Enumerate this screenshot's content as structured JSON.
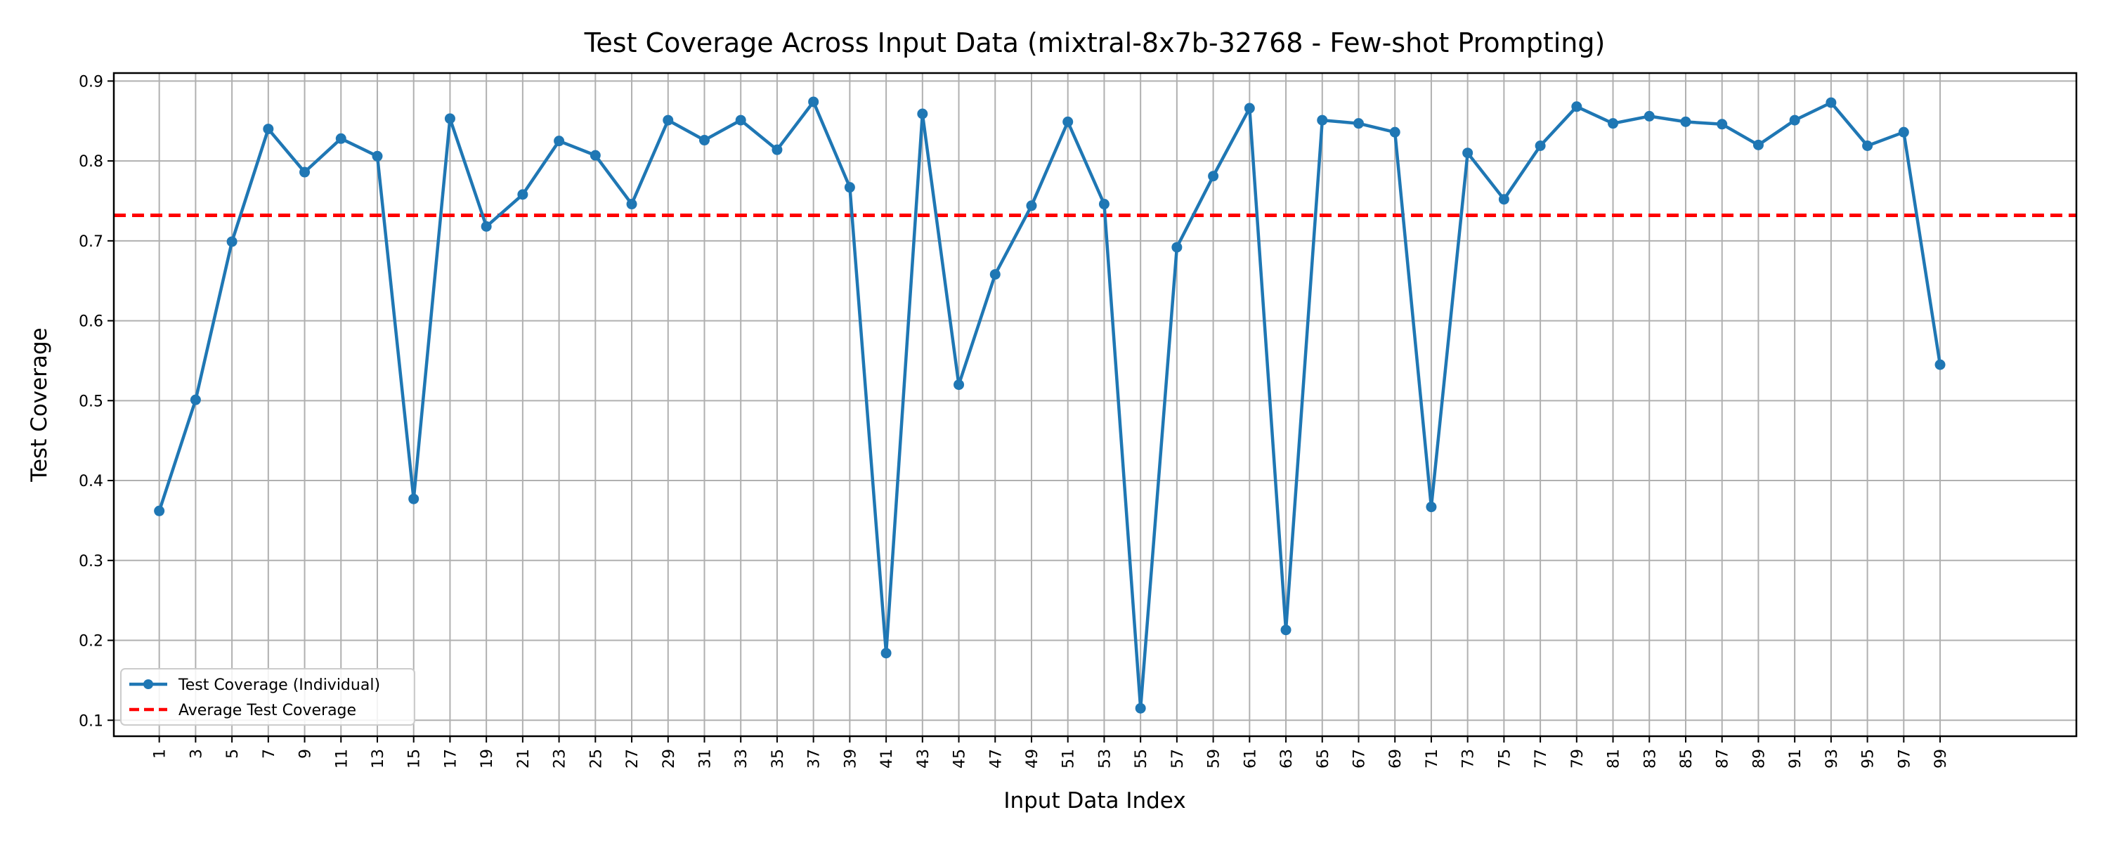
{
  "chart_data": {
    "type": "line",
    "title": "Test Coverage Across Input Data (mixtral-8x7b-32768 - Few-shot Prompting)",
    "xlabel": "Input Data Index",
    "ylabel": "Test Coverage",
    "xlim": [
      -1.5,
      106.5
    ],
    "ylim": [
      0.08,
      0.91
    ],
    "grid": true,
    "legend_position": "lower-left",
    "x_ticks": [
      1,
      3,
      5,
      7,
      9,
      11,
      13,
      15,
      17,
      19,
      21,
      23,
      25,
      27,
      29,
      31,
      33,
      35,
      37,
      39,
      41,
      43,
      45,
      47,
      49,
      51,
      53,
      55,
      57,
      59,
      61,
      63,
      65,
      67,
      69,
      71,
      73,
      75,
      77,
      79,
      81,
      83,
      85,
      87,
      89,
      91,
      93,
      95,
      97,
      99
    ],
    "y_ticks": [
      0.1,
      0.2,
      0.3,
      0.4,
      0.5,
      0.6,
      0.7,
      0.8,
      0.9
    ],
    "y_tick_labels": [
      "0.1",
      "0.2",
      "0.3",
      "0.4",
      "0.5",
      "0.6",
      "0.7",
      "0.8",
      "0.9"
    ],
    "series": [
      {
        "name": "Test Coverage (Individual)",
        "color": "#1f77b4",
        "style": "solid-with-markers",
        "x": [
          1,
          3,
          5,
          7,
          9,
          11,
          13,
          15,
          17,
          19,
          21,
          23,
          25,
          27,
          29,
          31,
          33,
          35,
          37,
          39,
          41,
          43,
          45,
          47,
          49,
          51,
          53,
          55,
          57,
          59,
          61,
          63,
          65,
          67,
          69,
          71,
          73,
          75,
          77,
          79,
          81,
          83,
          85,
          87,
          89,
          91,
          93,
          95,
          97,
          99
        ],
        "values": [
          0.362,
          0.501,
          0.699,
          0.84,
          0.786,
          0.828,
          0.806,
          0.377,
          0.853,
          0.718,
          0.758,
          0.825,
          0.807,
          0.746,
          0.851,
          0.826,
          0.851,
          0.814,
          0.874,
          0.767,
          0.184,
          0.859,
          0.52,
          0.658,
          0.744,
          0.849,
          0.746,
          0.115,
          0.692,
          0.781,
          0.866,
          0.213,
          0.851,
          0.847,
          0.836,
          0.367,
          0.81,
          0.752,
          0.819,
          0.868,
          0.847,
          0.856,
          0.849,
          0.846,
          0.82,
          0.851,
          0.873,
          0.819,
          0.836,
          0.545
        ]
      },
      {
        "name": "Average Test Coverage",
        "color": "#ff0000",
        "style": "dashed-horizontal",
        "value": 0.732
      }
    ]
  }
}
